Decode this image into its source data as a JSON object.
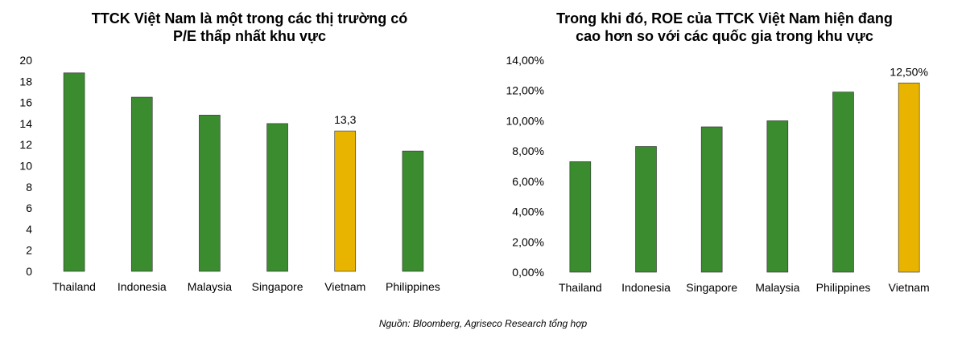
{
  "chart_data": [
    {
      "type": "bar",
      "title_line1": "TTCK Việt Nam là một trong các thị trường có",
      "title_line2": "P/E thấp nhất khu vực",
      "categories": [
        "Thailand",
        "Indonesia",
        "Malaysia",
        "Singapore",
        "Vietnam",
        "Philippines"
      ],
      "values": [
        18.8,
        16.5,
        14.8,
        14.0,
        13.3,
        11.4
      ],
      "colors": [
        "#3a8c2f",
        "#3a8c2f",
        "#3a8c2f",
        "#3a8c2f",
        "#e8b400",
        "#3a8c2f"
      ],
      "highlight_label": {
        "index": 4,
        "text": "13,3"
      },
      "ylim": [
        0,
        20
      ],
      "yticks": [
        "0",
        "2",
        "4",
        "6",
        "8",
        "10",
        "12",
        "14",
        "16",
        "18",
        "20"
      ],
      "grid": false,
      "legend": "none"
    },
    {
      "type": "bar",
      "title_line1": "Trong khi đó, ROE của TTCK Việt Nam hiện đang",
      "title_line2": "cao hơn so với các quốc gia trong khu vực",
      "categories": [
        "Thailand",
        "Indonesia",
        "Singapore",
        "Malaysia",
        "Philippines",
        "Vietnam"
      ],
      "values": [
        7.3,
        8.3,
        9.6,
        10.0,
        11.9,
        12.5
      ],
      "colors": [
        "#3a8c2f",
        "#3a8c2f",
        "#3a8c2f",
        "#3a8c2f",
        "#3a8c2f",
        "#e8b400"
      ],
      "highlight_label": {
        "index": 5,
        "text": "12,50%"
      },
      "ylim": [
        0,
        14
      ],
      "yticks": [
        "0,00%",
        "2,00%",
        "4,00%",
        "6,00%",
        "8,00%",
        "10,00%",
        "12,00%",
        "14,00%"
      ],
      "grid": false,
      "legend": "none"
    }
  ],
  "source": "Nguồn: Bloomberg, Agriseco Research tổng hợp"
}
